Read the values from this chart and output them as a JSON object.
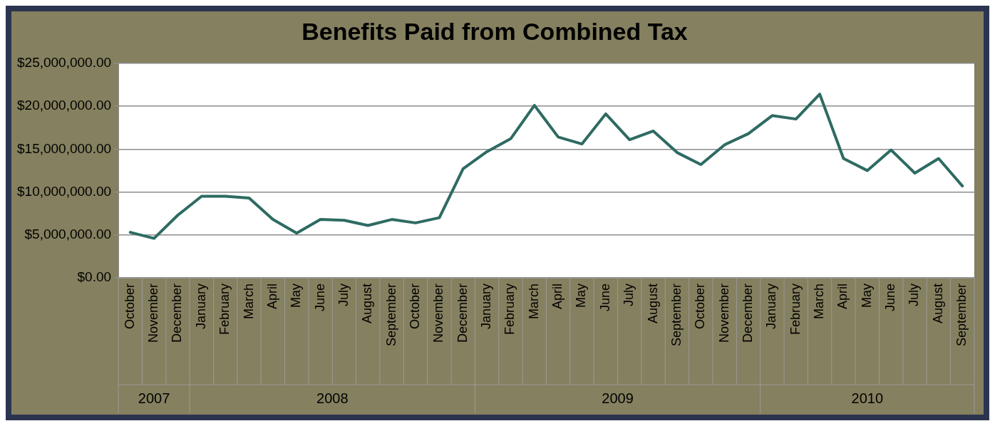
{
  "chart_data": {
    "type": "line",
    "title": "Benefits Paid from Combined Tax",
    "categories": [
      "October",
      "November",
      "December",
      "January",
      "February",
      "March",
      "April",
      "May",
      "June",
      "July",
      "August",
      "September",
      "October",
      "November",
      "December",
      "January",
      "February",
      "March",
      "April",
      "May",
      "June",
      "July",
      "August",
      "September",
      "October",
      "November",
      "December",
      "January",
      "February",
      "March",
      "April",
      "May",
      "June",
      "July",
      "August",
      "September"
    ],
    "annotations": [
      "2007",
      "2008",
      "2009",
      "2010"
    ],
    "series": [
      {
        "color": "#2e6b62",
        "values": [
          5300000,
          4600000,
          7300000,
          9500000,
          9500000,
          9300000,
          6800000,
          5200000,
          6800000,
          6700000,
          6100000,
          6800000,
          6400000,
          7000000,
          12700000,
          14700000,
          16200000,
          20100000,
          16400000,
          15600000,
          19100000,
          16100000,
          17100000,
          14600000,
          13200000,
          15500000,
          16800000,
          18900000,
          18500000,
          21400000,
          13900000,
          12500000,
          14900000,
          12200000,
          13900000,
          10700000
        ]
      }
    ],
    "ylim": [
      0,
      25000000
    ],
    "yticks": [
      {
        "value": 0,
        "label": "$0.00"
      },
      {
        "value": 5000000,
        "label": "$5,000,000.00"
      },
      {
        "value": 10000000,
        "label": "$10,000,000.00"
      },
      {
        "value": 15000000,
        "label": "$15,000,000.00"
      },
      {
        "value": 20000000,
        "label": "$20,000,000.00"
      },
      {
        "value": 25000000,
        "label": "$25,000,000.00"
      }
    ],
    "grid": "y",
    "legend": false,
    "marker": "none",
    "line_style": "solid"
  }
}
